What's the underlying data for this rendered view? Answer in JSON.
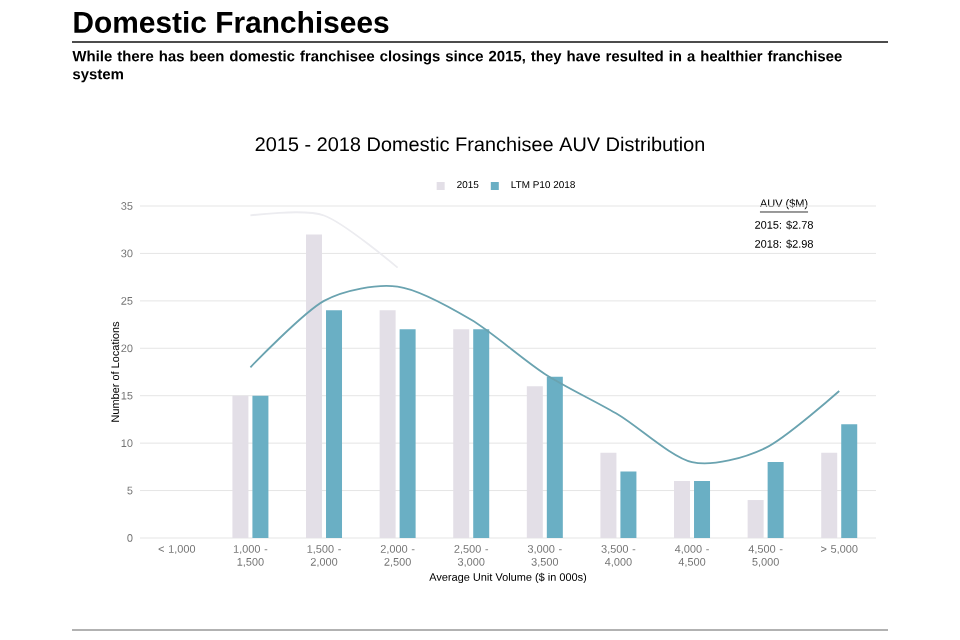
{
  "chart_data": {
    "type": "bar",
    "title": "2015 - 2018 Domestic Franchisee AUV Distribution",
    "subtitle": "While there has been domestic franchisee closings since 2015, they have resulted in a healthier franchisee system",
    "xlabel": "Average Unit Volume ($ in 000s)",
    "ylabel": "Number of Locations",
    "categories": [
      "< 1,000",
      "1,000 - 1,500",
      "1,500 - 2,000",
      "2,000 - 2,500",
      "2,500 - 3,000",
      "3,000 - 3,500",
      "3,500 - 4,000",
      "4,000 - 4,500",
      "4,500 - 5,000",
      "> 5,000"
    ],
    "series": [
      {
        "name": "2015",
        "color": "#e3dfe7",
        "values": [
          0,
          15,
          32,
          24,
          22,
          16,
          9,
          6,
          4,
          9
        ]
      },
      {
        "name": "LTM P10 2018",
        "color": "#6aafc4",
        "values": [
          0,
          15,
          24,
          22,
          22,
          17,
          7,
          6,
          8,
          12
        ]
      },
      {
        "type": "line",
        "color": "#ececf0",
        "values": [
          null,
          34,
          34,
          28.5,
          null,
          null,
          null,
          null,
          null,
          null
        ]
      },
      {
        "type": "line",
        "color": "#6aa3b0",
        "values": [
          null,
          18,
          25,
          26.5,
          23,
          17.3,
          13,
          8,
          9.5,
          15.5
        ]
      }
    ],
    "ylim": [
      0,
      35
    ],
    "yticks": [
      0,
      5,
      10,
      15,
      20,
      25,
      30,
      35
    ],
    "grid": "y",
    "legend": "top",
    "annotations": [
      "Domestic Franchisees",
      "AUV ($M)",
      "2015: $2.78",
      "2018: $2.98"
    ]
  }
}
